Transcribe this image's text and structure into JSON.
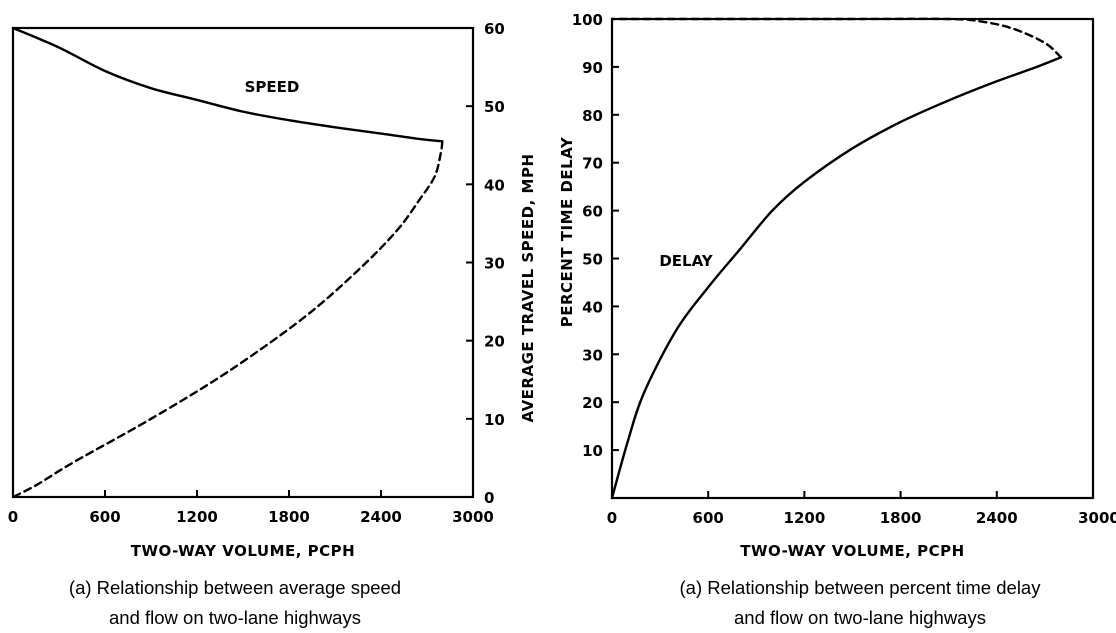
{
  "chart_data": [
    {
      "type": "line",
      "caption_line1": "(a) Relationship between average speed",
      "caption_line2": "and flow on two-lane highways",
      "xlabel": "TWO-WAY VOLUME, PCPH",
      "ylabel": "AVERAGE TRAVEL SPEED, MPH",
      "xlim": [
        0,
        3000
      ],
      "ylim": [
        0,
        60
      ],
      "x_ticks": [
        "0",
        "600",
        "1200",
        "1800",
        "2400",
        "3000"
      ],
      "y_ticks": [
        "0",
        "10",
        "20",
        "30",
        "40",
        "50",
        "60"
      ],
      "y_axis_side": "right",
      "grid": false,
      "annotation": "SPEED",
      "series": [
        {
          "style": "solid",
          "x": [
            0,
            300,
            600,
            900,
            1200,
            1500,
            1800,
            2100,
            2400,
            2650,
            2800
          ],
          "y": [
            60,
            57.5,
            54.5,
            52.3,
            50.8,
            49.3,
            48.2,
            47.3,
            46.5,
            45.8,
            45.5
          ]
        },
        {
          "style": "dashed",
          "x": [
            2800,
            2790,
            2750,
            2650,
            2500,
            2250,
            1900,
            1400,
            900,
            400,
            150,
            0
          ],
          "y": [
            45.5,
            44,
            41,
            38,
            34,
            29,
            23,
            16,
            10,
            4.5,
            1.5,
            0
          ]
        }
      ]
    },
    {
      "type": "line",
      "caption_line1": "(a) Relationship between percent time delay",
      "caption_line2": "and flow on two-lane highways",
      "xlabel": "TWO-WAY VOLUME, PCPH",
      "ylabel": "PERCENT TIME DELAY",
      "xlim": [
        0,
        3000
      ],
      "ylim": [
        0,
        100
      ],
      "x_ticks": [
        "0",
        "600",
        "1200",
        "1800",
        "2400",
        "3000"
      ],
      "y_ticks": [
        "10",
        "20",
        "30",
        "40",
        "50",
        "60",
        "70",
        "80",
        "90",
        "100"
      ],
      "y_axis_side": "left",
      "grid": false,
      "annotation": "DELAY",
      "series": [
        {
          "style": "solid",
          "x": [
            0,
            100,
            200,
            400,
            600,
            800,
            1000,
            1200,
            1500,
            1800,
            2100,
            2400,
            2650,
            2800
          ],
          "y": [
            0,
            12,
            22,
            35,
            44,
            52,
            60,
            66,
            73,
            78.5,
            83,
            87,
            90,
            92
          ]
        },
        {
          "style": "dashed",
          "x": [
            2800,
            2700,
            2500,
            2300,
            2100,
            1500,
            600,
            0
          ],
          "y": [
            92,
            95,
            98,
            99.5,
            100,
            100,
            100,
            100
          ]
        }
      ]
    }
  ]
}
